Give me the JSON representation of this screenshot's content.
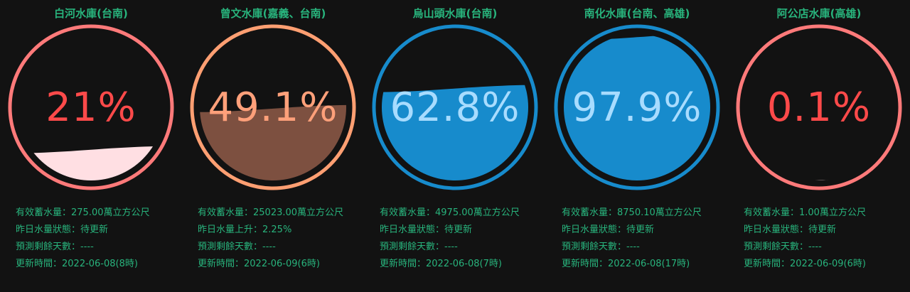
{
  "reservoirs": [
    {
      "name": "白河水庫(台南)",
      "percent_text": "21%",
      "fill_fraction": 0.21,
      "ring_color": "#ff7a7a",
      "water_color": "#ffdfe3",
      "text_color": "#ff4a4a",
      "lines": [
        "有效蓄水量：275.00萬立方公尺",
        "昨日水量狀態：待更新",
        "預測剩餘天數：----",
        "更新時間：2022-06-08(8時)"
      ]
    },
    {
      "name": "曾文水庫(嘉義、台南)",
      "percent_text": "49.1%",
      "fill_fraction": 0.491,
      "ring_color": "#ff9f72",
      "water_color": "#7d5040",
      "text_color": "#ffa07a",
      "lines": [
        "有效蓄水量：25023.00萬立方公尺",
        "昨日水量上升：2.25%",
        "預測剩餘天數：----",
        "更新時間：2022-06-09(6時)"
      ]
    },
    {
      "name": "烏山頭水庫(台南)",
      "percent_text": "62.8%",
      "fill_fraction": 0.628,
      "ring_color": "#178bcc",
      "water_color": "#178bcc",
      "text_color": "#a8dcff",
      "lines": [
        "有效蓄水量：4975.00萬立方公尺",
        "昨日水量狀態：待更新",
        "預測剩餘天數：----",
        "更新時間：2022-06-08(7時)"
      ]
    },
    {
      "name": "南化水庫(台南、高雄)",
      "percent_text": "97.9%",
      "fill_fraction": 0.979,
      "ring_color": "#178bcc",
      "water_color": "#178bcc",
      "text_color": "#a8dcff",
      "lines": [
        "有效蓄水量：8750.10萬立方公尺",
        "昨日水量狀態：待更新",
        "預測剩餘天數：----",
        "更新時間：2022-06-08(17時)"
      ]
    },
    {
      "name": "阿公店水庫(高雄)",
      "percent_text": "0.1%",
      "fill_fraction": 0.001,
      "ring_color": "#ff7a7a",
      "water_color": "#ffdfe3",
      "text_color": "#ff4a4a",
      "lines": [
        "有效蓄水量：1.00萬立方公尺",
        "昨日水量狀態：待更新",
        "預測剩餘天數：----",
        "更新時間：2022-06-09(6時)"
      ]
    }
  ]
}
